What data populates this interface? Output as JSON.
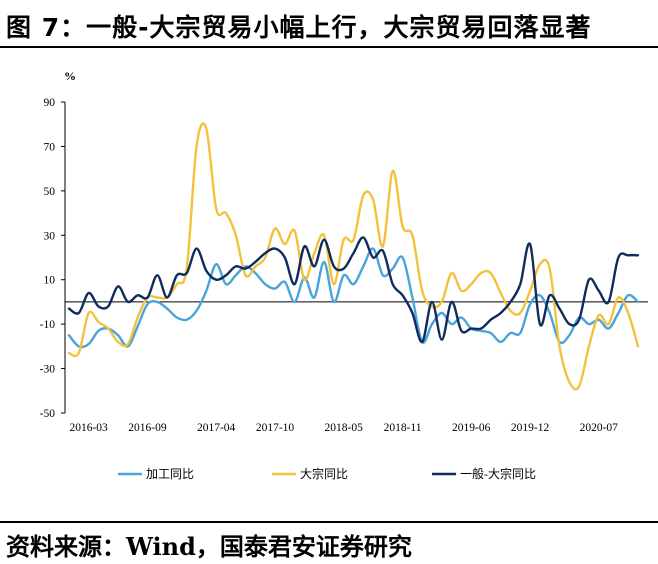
{
  "header": {
    "title": "图 7：一般-大宗贸易小幅上行，大宗贸易回落显著"
  },
  "footer": {
    "source": "资料来源：Wind，国泰君安证券研究"
  },
  "chart_data": {
    "type": "line",
    "unit": "%",
    "ylim": [
      -50,
      90
    ],
    "yticks": [
      90,
      70,
      50,
      30,
      10,
      -10,
      -30,
      -50
    ],
    "x_range": [
      "2016-01",
      "2020-11"
    ],
    "xticks": [
      "2016-03",
      "2016-09",
      "2017-04",
      "2017-10",
      "2018-05",
      "2018-11",
      "2019-06",
      "2019-12",
      "2020-07"
    ],
    "grid": false,
    "legend_position": "bottom",
    "series": [
      {
        "name": "加工同比",
        "color": "#4ba3dc",
        "points": [
          [
            "2016-01",
            -15
          ],
          [
            "2016-02",
            -20
          ],
          [
            "2016-03",
            -19
          ],
          [
            "2016-04",
            -13
          ],
          [
            "2016-05",
            -12
          ],
          [
            "2016-06",
            -15
          ],
          [
            "2016-07",
            -20
          ],
          [
            "2016-08",
            -11
          ],
          [
            "2016-09",
            -1
          ],
          [
            "2016-10",
            0
          ],
          [
            "2016-11",
            -3
          ],
          [
            "2016-12",
            -7
          ],
          [
            "2017-01",
            -8
          ],
          [
            "2017-02",
            -4
          ],
          [
            "2017-03",
            5
          ],
          [
            "2017-04",
            17
          ],
          [
            "2017-05",
            8
          ],
          [
            "2017-06",
            12
          ],
          [
            "2017-07",
            16
          ],
          [
            "2017-08",
            13
          ],
          [
            "2017-09",
            8
          ],
          [
            "2017-10",
            6
          ],
          [
            "2017-11",
            9
          ],
          [
            "2017-12",
            0
          ],
          [
            "2018-01",
            11
          ],
          [
            "2018-02",
            2
          ],
          [
            "2018-03",
            18
          ],
          [
            "2018-04",
            0
          ],
          [
            "2018-05",
            12
          ],
          [
            "2018-06",
            8
          ],
          [
            "2018-07",
            16
          ],
          [
            "2018-08",
            24
          ],
          [
            "2018-09",
            12
          ],
          [
            "2018-10",
            15
          ],
          [
            "2018-11",
            20
          ],
          [
            "2018-12",
            2
          ],
          [
            "2019-01",
            -18
          ],
          [
            "2019-02",
            -10
          ],
          [
            "2019-03",
            -5
          ],
          [
            "2019-04",
            -10
          ],
          [
            "2019-05",
            -7
          ],
          [
            "2019-06",
            -12
          ],
          [
            "2019-07",
            -13
          ],
          [
            "2019-08",
            -14
          ],
          [
            "2019-09",
            -18
          ],
          [
            "2019-10",
            -14
          ],
          [
            "2019-11",
            -14
          ],
          [
            "2019-12",
            -1
          ],
          [
            "2020-01",
            3
          ],
          [
            "2020-02",
            -5
          ],
          [
            "2020-03",
            -18
          ],
          [
            "2020-04",
            -15
          ],
          [
            "2020-05",
            -7
          ],
          [
            "2020-06",
            -10
          ],
          [
            "2020-07",
            -8
          ],
          [
            "2020-08",
            -12
          ],
          [
            "2020-09",
            -5
          ],
          [
            "2020-10",
            3
          ],
          [
            "2020-11",
            0
          ]
        ]
      },
      {
        "name": "大宗同比",
        "color": "#f3c23d",
        "points": [
          [
            "2016-01",
            -23
          ],
          [
            "2016-02",
            -23
          ],
          [
            "2016-03",
            -5
          ],
          [
            "2016-04",
            -9
          ],
          [
            "2016-05",
            -12
          ],
          [
            "2016-06",
            -18
          ],
          [
            "2016-07",
            -19
          ],
          [
            "2016-08",
            -7
          ],
          [
            "2016-09",
            2
          ],
          [
            "2016-10",
            2
          ],
          [
            "2016-11",
            2
          ],
          [
            "2016-12",
            8
          ],
          [
            "2017-01",
            15
          ],
          [
            "2017-02",
            70
          ],
          [
            "2017-03",
            78
          ],
          [
            "2017-04",
            42
          ],
          [
            "2017-05",
            40
          ],
          [
            "2017-06",
            30
          ],
          [
            "2017-07",
            12
          ],
          [
            "2017-08",
            16
          ],
          [
            "2017-09",
            20
          ],
          [
            "2017-10",
            33
          ],
          [
            "2017-11",
            26
          ],
          [
            "2017-12",
            32
          ],
          [
            "2018-01",
            10
          ],
          [
            "2018-02",
            22
          ],
          [
            "2018-03",
            30
          ],
          [
            "2018-04",
            8
          ],
          [
            "2018-05",
            28
          ],
          [
            "2018-06",
            28
          ],
          [
            "2018-07",
            48
          ],
          [
            "2018-08",
            46
          ],
          [
            "2018-09",
            25
          ],
          [
            "2018-10",
            59
          ],
          [
            "2018-11",
            34
          ],
          [
            "2018-12",
            30
          ],
          [
            "2019-01",
            5
          ],
          [
            "2019-02",
            -2
          ],
          [
            "2019-03",
            0
          ],
          [
            "2019-04",
            13
          ],
          [
            "2019-05",
            5
          ],
          [
            "2019-06",
            8
          ],
          [
            "2019-07",
            13
          ],
          [
            "2019-08",
            13
          ],
          [
            "2019-09",
            4
          ],
          [
            "2019-10",
            -4
          ],
          [
            "2019-11",
            -5
          ],
          [
            "2019-12",
            5
          ],
          [
            "2020-01",
            17
          ],
          [
            "2020-02",
            15
          ],
          [
            "2020-03",
            -20
          ],
          [
            "2020-04",
            -36
          ],
          [
            "2020-05",
            -38
          ],
          [
            "2020-06",
            -20
          ],
          [
            "2020-07",
            -6
          ],
          [
            "2020-08",
            -10
          ],
          [
            "2020-09",
            2
          ],
          [
            "2020-10",
            -5
          ],
          [
            "2020-11",
            -20
          ]
        ]
      },
      {
        "name": "一般-大宗同比",
        "color": "#0f2c5c",
        "points": [
          [
            "2016-01",
            -3
          ],
          [
            "2016-02",
            -5
          ],
          [
            "2016-03",
            4
          ],
          [
            "2016-04",
            -2
          ],
          [
            "2016-05",
            -2
          ],
          [
            "2016-06",
            7
          ],
          [
            "2016-07",
            0
          ],
          [
            "2016-08",
            3
          ],
          [
            "2016-09",
            2
          ],
          [
            "2016-10",
            12
          ],
          [
            "2016-11",
            2
          ],
          [
            "2016-12",
            12
          ],
          [
            "2017-01",
            13
          ],
          [
            "2017-02",
            24
          ],
          [
            "2017-03",
            14
          ],
          [
            "2017-04",
            10
          ],
          [
            "2017-05",
            12
          ],
          [
            "2017-06",
            16
          ],
          [
            "2017-07",
            15
          ],
          [
            "2017-08",
            18
          ],
          [
            "2017-09",
            22
          ],
          [
            "2017-10",
            24
          ],
          [
            "2017-11",
            20
          ],
          [
            "2017-12",
            8
          ],
          [
            "2018-01",
            25
          ],
          [
            "2018-02",
            16
          ],
          [
            "2018-03",
            28
          ],
          [
            "2018-04",
            16
          ],
          [
            "2018-05",
            15
          ],
          [
            "2018-06",
            22
          ],
          [
            "2018-07",
            29
          ],
          [
            "2018-08",
            20
          ],
          [
            "2018-09",
            23
          ],
          [
            "2018-10",
            8
          ],
          [
            "2018-11",
            3
          ],
          [
            "2018-12",
            -5
          ],
          [
            "2019-01",
            -18
          ],
          [
            "2019-02",
            0
          ],
          [
            "2019-03",
            -17
          ],
          [
            "2019-04",
            0
          ],
          [
            "2019-05",
            -13
          ],
          [
            "2019-06",
            -12
          ],
          [
            "2019-07",
            -12
          ],
          [
            "2019-08",
            -8
          ],
          [
            "2019-09",
            -5
          ],
          [
            "2019-10",
            0
          ],
          [
            "2019-11",
            8
          ],
          [
            "2019-12",
            26
          ],
          [
            "2020-01",
            -10
          ],
          [
            "2020-02",
            3
          ],
          [
            "2020-03",
            -3
          ],
          [
            "2020-04",
            -10
          ],
          [
            "2020-05",
            -8
          ],
          [
            "2020-06",
            10
          ],
          [
            "2020-07",
            5
          ],
          [
            "2020-08",
            0
          ],
          [
            "2020-09",
            20
          ],
          [
            "2020-10",
            21
          ],
          [
            "2020-11",
            21
          ]
        ]
      }
    ]
  }
}
